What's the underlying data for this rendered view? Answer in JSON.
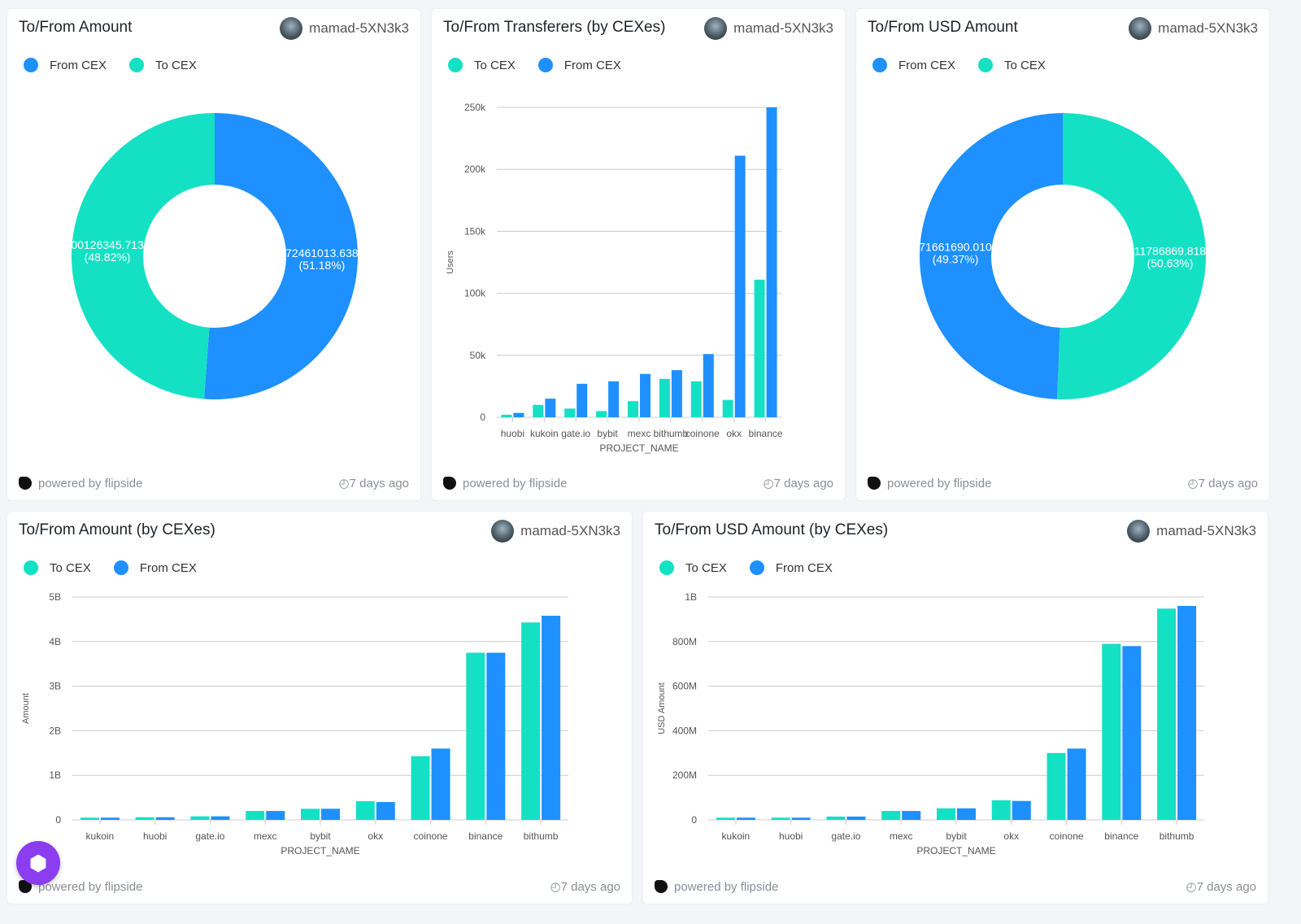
{
  "colors": {
    "to_cex": "#14e0c4",
    "from_cex": "#1e90ff"
  },
  "footer": {
    "powered": "powered by flipside",
    "age": "7 days ago"
  },
  "user": "mamad-5XN3k3",
  "cards": [
    {
      "title": "To/From Amount",
      "legend": [
        "From CEX",
        "To CEX"
      ],
      "chart_data": {
        "type": "pie",
        "donut": true,
        "slices": [
          {
            "name": "From CEX",
            "label": "72461013.638",
            "pct": "(51.18%)",
            "value": 51.18
          },
          {
            "name": "To CEX",
            "label": "00126345.713",
            "pct": "(48.82%)",
            "value": 48.82
          }
        ]
      }
    },
    {
      "title": "To/From Transferers (by CEXes)",
      "legend": [
        "To CEX",
        "From CEX"
      ],
      "chart_data": {
        "type": "bar",
        "xlabel": "PROJECT_NAME",
        "ylabel": "Users",
        "ylim": [
          0,
          250000
        ],
        "yticks": [
          "0",
          "50k",
          "100k",
          "150k",
          "200k",
          "250k"
        ],
        "categories": [
          "huobi",
          "kukoin",
          "gate.io",
          "bybit",
          "mexc",
          "bithumb",
          "coinone",
          "okx",
          "binance"
        ],
        "series": [
          {
            "name": "To CEX",
            "values": [
              2000,
              10000,
              7000,
              5000,
              13000,
              31000,
              29000,
              14000,
              111000
            ]
          },
          {
            "name": "From CEX",
            "values": [
              3500,
              15000,
              27000,
              29000,
              35000,
              38000,
              51000,
              211000,
              250000
            ]
          }
        ]
      }
    },
    {
      "title": "To/From USD Amount",
      "legend": [
        "From CEX",
        "To CEX"
      ],
      "chart_data": {
        "type": "pie",
        "donut": true,
        "slices": [
          {
            "name": "From CEX",
            "label": "11786869.818",
            "pct": "(50.63%)",
            "value": 50.63
          },
          {
            "name": "To CEX",
            "label": "71661690.010",
            "pct": "(49.37%)",
            "value": 49.37
          }
        ]
      }
    },
    {
      "title": "To/From Amount (by CEXes)",
      "legend": [
        "To CEX",
        "From CEX"
      ],
      "chart_data": {
        "type": "bar",
        "xlabel": "PROJECT_NAME",
        "ylabel": "Amount",
        "ylim": [
          0,
          5000000000
        ],
        "yticks": [
          "0",
          "1B",
          "2B",
          "3B",
          "4B",
          "5B"
        ],
        "categories": [
          "kukoin",
          "huobi",
          "gate.io",
          "mexc",
          "bybit",
          "okx",
          "coinone",
          "binance",
          "bithumb"
        ],
        "series": [
          {
            "name": "To CEX",
            "values": [
              50000000,
              60000000,
              80000000,
              200000000,
              250000000,
              420000000,
              1430000000,
              3750000000,
              4430000000
            ]
          },
          {
            "name": "From CEX",
            "values": [
              50000000,
              60000000,
              80000000,
              200000000,
              250000000,
              400000000,
              1600000000,
              3750000000,
              4580000000
            ]
          }
        ]
      }
    },
    {
      "title": "To/From USD Amount (by CEXes)",
      "legend": [
        "To CEX",
        "From CEX"
      ],
      "chart_data": {
        "type": "bar",
        "xlabel": "PROJECT_NAME",
        "ylabel": "USD Amount",
        "ylim": [
          0,
          1000000000
        ],
        "yticks": [
          "0",
          "200M",
          "400M",
          "600M",
          "800M",
          "1B"
        ],
        "categories": [
          "kukoin",
          "huobi",
          "gate.io",
          "mexc",
          "bybit",
          "okx",
          "coinone",
          "binance",
          "bithumb"
        ],
        "series": [
          {
            "name": "To CEX",
            "values": [
              10000000,
              10000000,
              15000000,
              40000000,
              52000000,
              88000000,
              300000000,
              790000000,
              948000000
            ]
          },
          {
            "name": "From CEX",
            "values": [
              10000000,
              10000000,
              15000000,
              40000000,
              52000000,
              85000000,
              320000000,
              780000000,
              960000000
            ]
          }
        ]
      }
    }
  ]
}
